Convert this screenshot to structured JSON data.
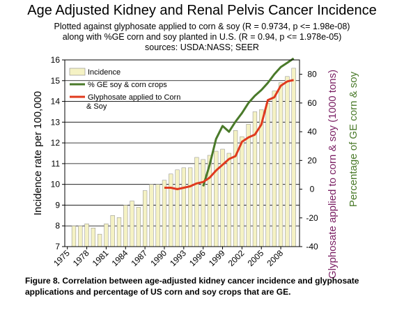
{
  "header": {
    "title": "Age Adjusted Kidney and Renal Pelvis Cancer Incidence",
    "subtitle_1": "Plotted against glyphosate applied to corn & soy (R = 0.9734, p <= 1.98e-08)",
    "subtitle_2": "along with %GE corn and soy planted in U.S. (R = 0.94, p <= 1.978e-05)",
    "subtitle_3": "sources: USDA:NASS; SEER"
  },
  "caption": {
    "line_1": "Figure 8. Correlation between age-adjusted kidney cancer incidence and glyphosate",
    "line_2": "applications and percentage of US corn and soy crops that are GE."
  },
  "chart_data": {
    "type": "bar",
    "ylabel": "Incidence rate per 100,000",
    "y2label": "Glyphosate applied to corn & soy (1000 tons)",
    "y3label": "Percentage of GE corn & soy",
    "ylim": [
      7,
      16
    ],
    "y2lim": [
      -40,
      90
    ],
    "left_ticks": [
      "7",
      "8",
      "9",
      "10",
      "11",
      "12",
      "13",
      "14",
      "15",
      "16"
    ],
    "right_ticks": [
      "-40",
      "-20",
      "0",
      "20",
      "40",
      "60",
      "80"
    ],
    "x_ticks": [
      "1975",
      "1978",
      "1981",
      "1984",
      "1987",
      "1990",
      "1993",
      "1996",
      "1999",
      "2002",
      "2005",
      "2008"
    ],
    "grid": true,
    "legend_position": "top-left",
    "years": [
      1975,
      1976,
      1977,
      1978,
      1979,
      1980,
      1981,
      1982,
      1983,
      1984,
      1985,
      1986,
      1987,
      1988,
      1989,
      1990,
      1991,
      1992,
      1993,
      1994,
      1995,
      1996,
      1997,
      1998,
      1999,
      2000,
      2001,
      2002,
      2003,
      2004,
      2005,
      2006,
      2007,
      2008,
      2009,
      2010
    ],
    "series": [
      {
        "name": "Incidence",
        "kind": "bar",
        "axis": "left",
        "color": "#f5f2c4",
        "values": [
          null,
          8.0,
          8.0,
          8.1,
          7.9,
          7.6,
          8.1,
          8.5,
          8.4,
          9.0,
          9.2,
          8.9,
          9.7,
          10.0,
          10.0,
          10.2,
          10.5,
          10.7,
          10.8,
          10.8,
          11.3,
          11.2,
          11.4,
          11.6,
          11.7,
          11.5,
          12.6,
          12.3,
          12.9,
          13.5,
          13.6,
          13.9,
          14.5,
          14.9,
          15.2,
          15.6
        ]
      },
      {
        "name": "% GE soy & corn crops",
        "kind": "line",
        "axis": "right",
        "color": "#4a7a2a",
        "x": [
          1996,
          1997,
          1998,
          1999,
          2000,
          2001,
          2002,
          2003,
          2004,
          2005,
          2006,
          2007,
          2008,
          2009,
          2010
        ],
        "values": [
          2,
          17,
          35,
          44,
          40,
          47,
          53,
          60,
          65,
          69,
          74,
          80,
          85,
          88,
          91
        ]
      },
      {
        "name": "Glyphosate applied to Corn & Soy",
        "kind": "line",
        "axis": "right",
        "color": "#e03a1e",
        "x": [
          1990,
          1991,
          1992,
          1993,
          1994,
          1995,
          1996,
          1997,
          1998,
          1999,
          2000,
          2001,
          2002,
          2003,
          2004,
          2005,
          2006,
          2007,
          2008,
          2009,
          2010
        ],
        "values": [
          1,
          1,
          0,
          1,
          2,
          4,
          5,
          8,
          13,
          17,
          21,
          23,
          33,
          36,
          38,
          45,
          62,
          64,
          72,
          75,
          76
        ]
      }
    ]
  }
}
